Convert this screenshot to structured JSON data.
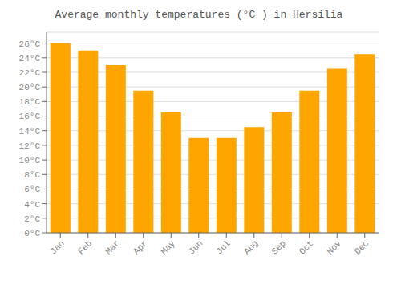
{
  "chart_data": {
    "type": "bar",
    "title": "Average monthly temperatures (°C ) in Hersilia",
    "categories": [
      "Jan",
      "Feb",
      "Mar",
      "Apr",
      "May",
      "Jun",
      "Jul",
      "Aug",
      "Sep",
      "Oct",
      "Nov",
      "Dec"
    ],
    "values": [
      26,
      25,
      23,
      19.5,
      16.5,
      13,
      13,
      14.5,
      16.5,
      19.5,
      22.5,
      24.5
    ],
    "color": "#FFA500",
    "ylim": [
      0,
      27.5
    ],
    "yticks": [
      {
        "value": 0,
        "label": "0°C"
      },
      {
        "value": 2,
        "label": "2°C"
      },
      {
        "value": 4,
        "label": "4°C"
      },
      {
        "value": 6,
        "label": "6°C"
      },
      {
        "value": 8,
        "label": "8°C"
      },
      {
        "value": 10,
        "label": "10°C"
      },
      {
        "value": 12,
        "label": "12°C"
      },
      {
        "value": 14,
        "label": "14°C"
      },
      {
        "value": 16,
        "label": "16°C"
      },
      {
        "value": 18,
        "label": "18°C"
      },
      {
        "value": 20,
        "label": "20°C"
      },
      {
        "value": 22,
        "label": "22°C"
      },
      {
        "value": 24,
        "label": "24°C"
      },
      {
        "value": 26,
        "label": "26°C"
      }
    ],
    "grid": true
  }
}
